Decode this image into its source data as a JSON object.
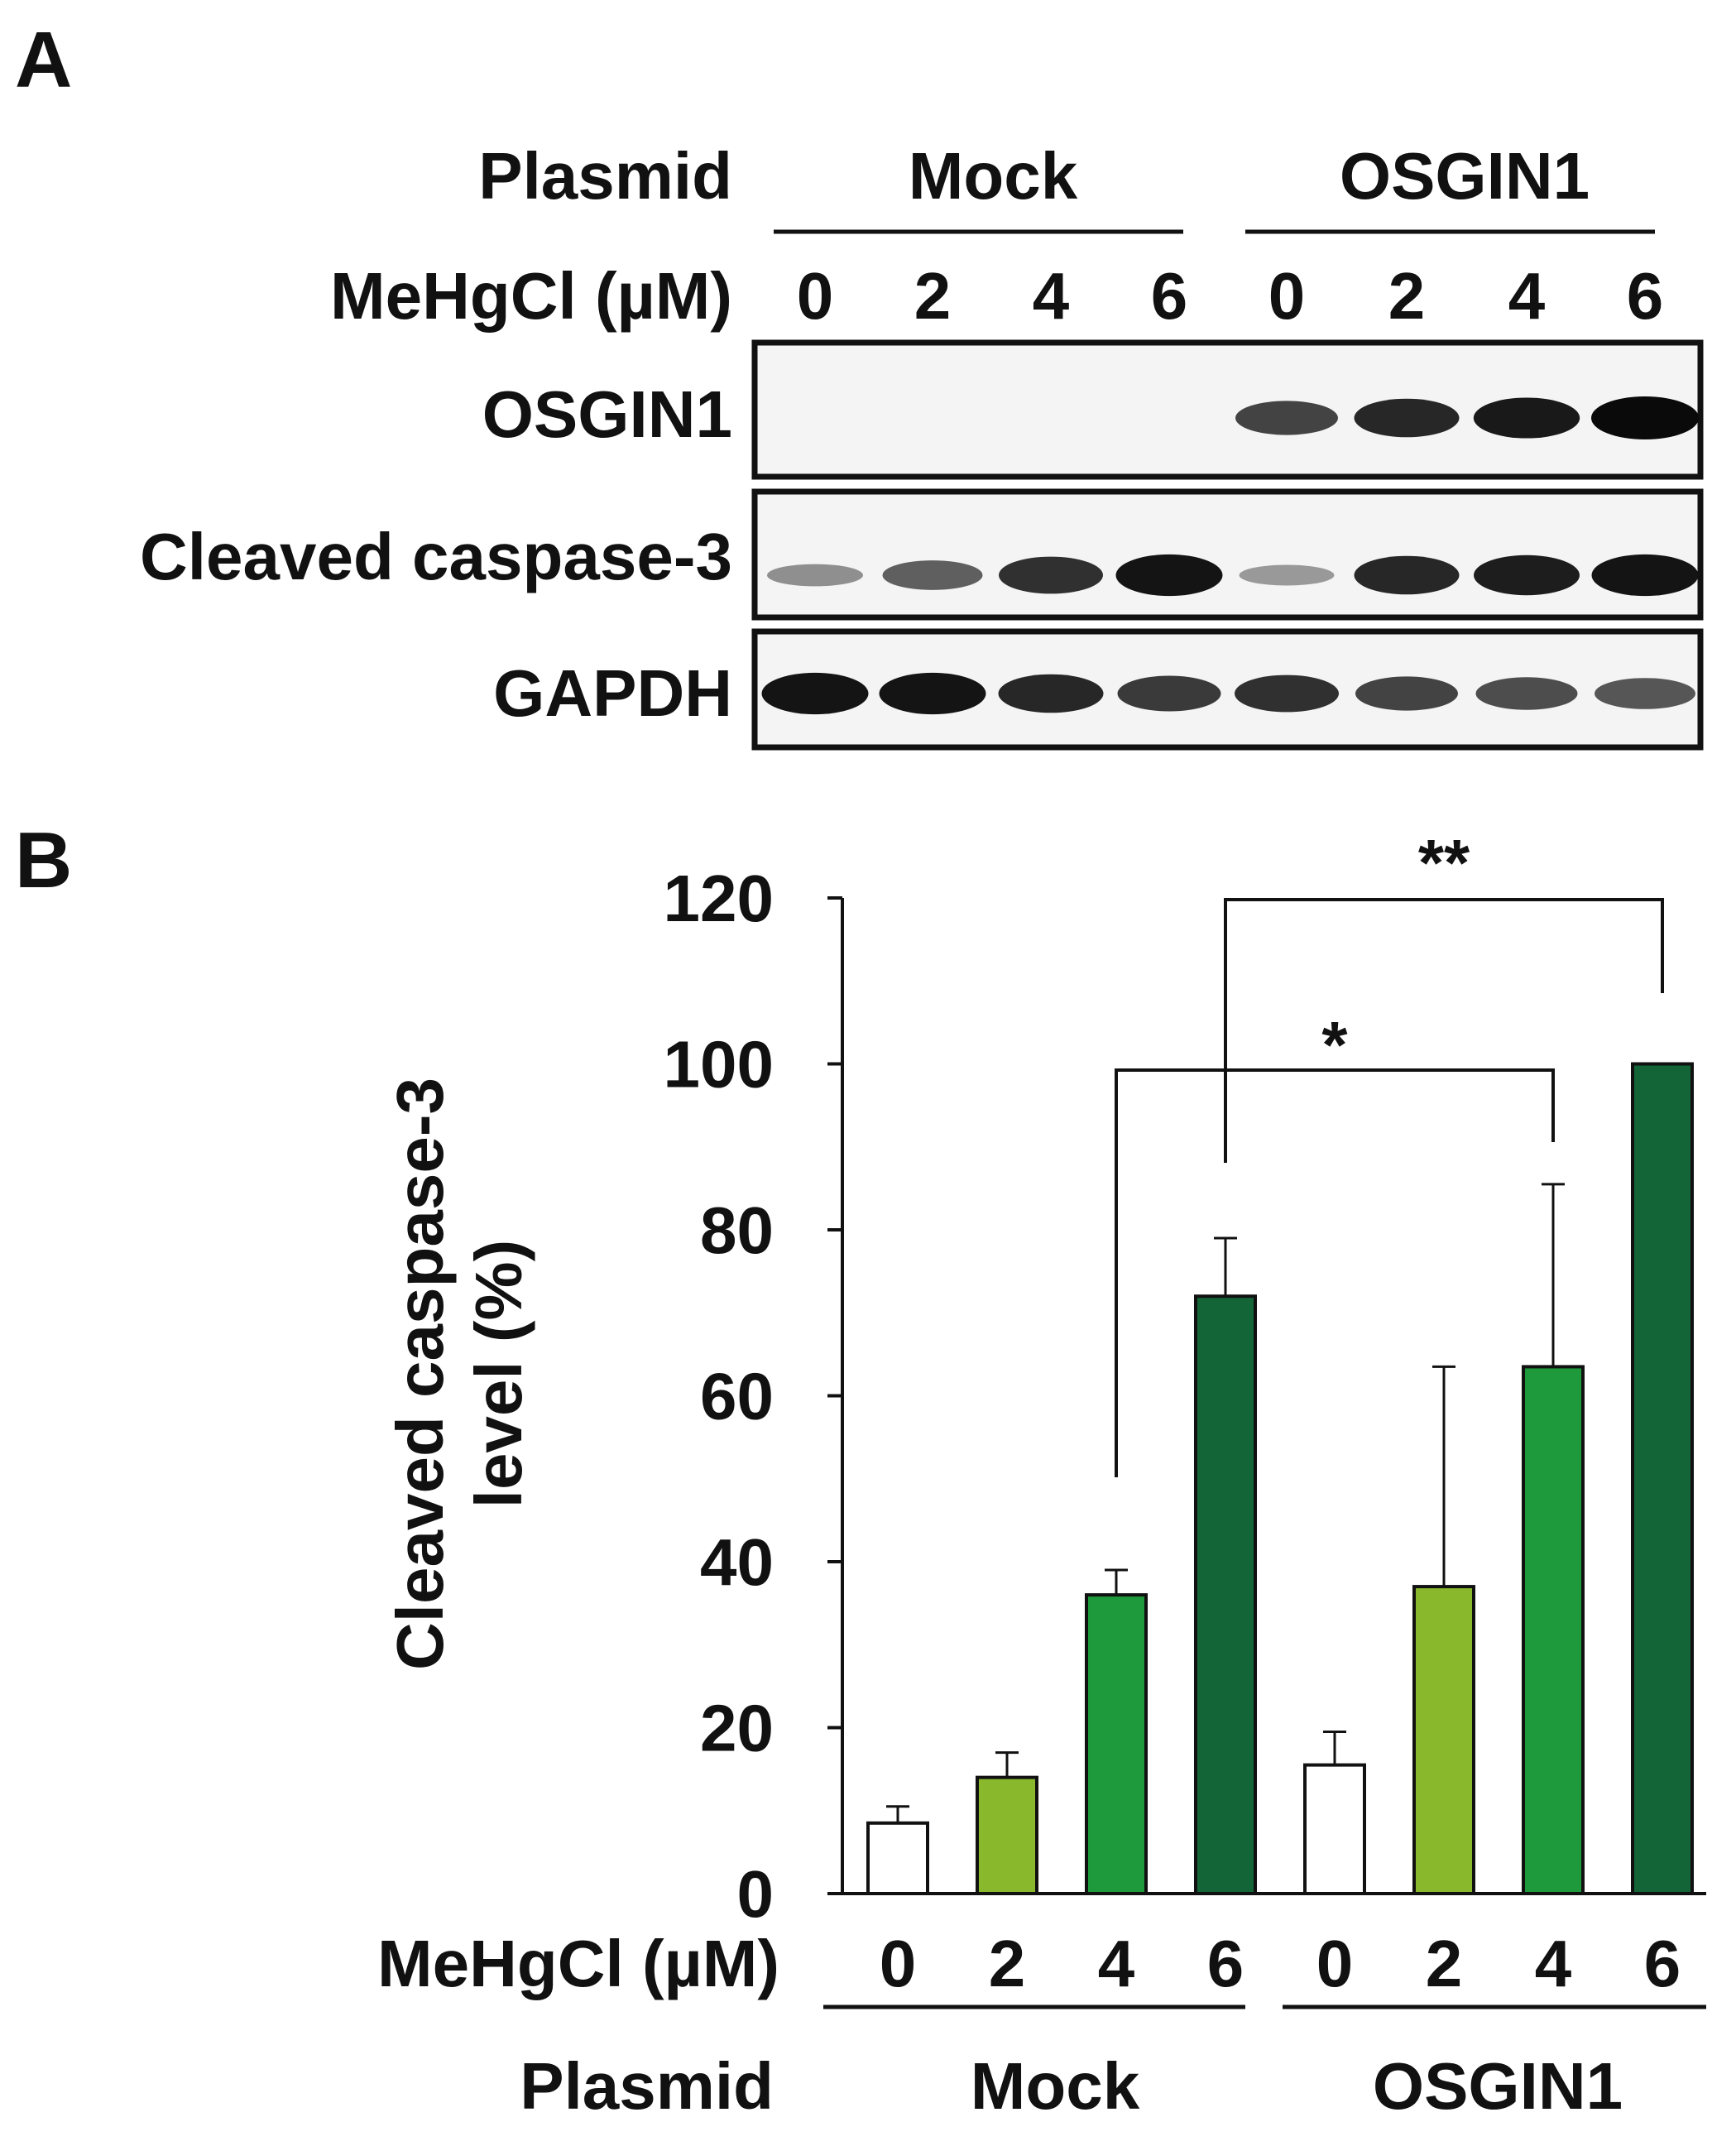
{
  "panel_a": {
    "label": "A",
    "plasmid_label": "Plasmid",
    "groups": [
      "Mock",
      "OSGIN1"
    ],
    "treatment_label": "MeHgCl (µM)",
    "doses": [
      "0",
      "2",
      "4",
      "6",
      "0",
      "2",
      "4",
      "6"
    ],
    "blots": [
      {
        "name": "OSGIN1",
        "band_intensity": [
          0,
          0,
          0,
          0,
          0.7,
          0.85,
          0.92,
          1.0
        ]
      },
      {
        "name": "Cleaved caspase-3",
        "band_intensity": [
          0.3,
          0.55,
          0.8,
          0.95,
          0.25,
          0.85,
          0.9,
          0.95
        ]
      },
      {
        "name": "GAPDH",
        "band_intensity": [
          0.95,
          0.95,
          0.85,
          0.75,
          0.8,
          0.7,
          0.65,
          0.6
        ]
      }
    ]
  },
  "panel_b": {
    "label": "B",
    "plasmid_label": "Plasmid",
    "groups": [
      "Mock",
      "OSGIN1"
    ],
    "treatment_label": "MeHgCl (µM)",
    "ylabel_line1": "Cleaved caspase-3",
    "ylabel_line2": "level (%)",
    "significance": [
      {
        "from": 2,
        "to": 6,
        "label": "*"
      },
      {
        "from": 3,
        "to": 7,
        "label": "**"
      }
    ]
  },
  "chart_data": {
    "type": "bar",
    "categories": [
      "0",
      "2",
      "4",
      "6",
      "0",
      "2",
      "4",
      "6"
    ],
    "groups": [
      "Mock",
      "Mock",
      "Mock",
      "Mock",
      "OSGIN1",
      "OSGIN1",
      "OSGIN1",
      "OSGIN1"
    ],
    "values": [
      8.5,
      14,
      36,
      72,
      15.5,
      37,
      63.5,
      100
    ],
    "errors": [
      2,
      3,
      3,
      7,
      4,
      26.5,
      22,
      0
    ],
    "colors": [
      "#ffffff",
      "#8ab82c",
      "#1e9a3c",
      "#136437",
      "#ffffff",
      "#8ab82c",
      "#1e9a3c",
      "#136437"
    ],
    "yticks": [
      0,
      20,
      40,
      60,
      80,
      100,
      120
    ],
    "ylim": [
      0,
      120
    ],
    "ylabel": "Cleaved caspase-3 level (%)",
    "xlabel": "MeHgCl (µM)"
  }
}
